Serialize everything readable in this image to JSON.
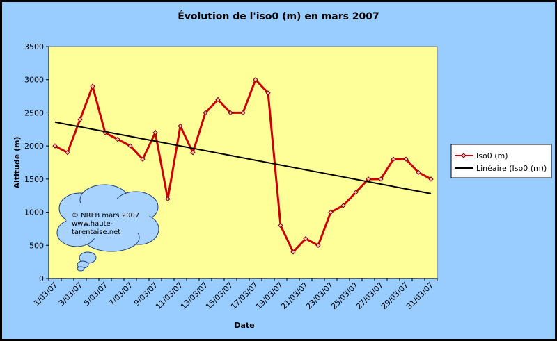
{
  "chart_data": {
    "type": "line",
    "title": "Évolution de l'iso0 (m) en mars 2007",
    "x_label": "Date",
    "y_label": "Altitude (m)",
    "categories": [
      "1/03/07",
      null,
      "3/03/07",
      null,
      "5/03/07",
      null,
      "7/03/07",
      null,
      "9/03/07",
      null,
      "11/03/07",
      null,
      "13/03/07",
      null,
      "15/03/07",
      null,
      "17/03/07",
      null,
      "19/03/07",
      null,
      "21/03/07",
      null,
      "23/03/07",
      null,
      "25/03/07",
      null,
      "27/03/07",
      null,
      "29/03/07",
      null,
      "31/03/07"
    ],
    "series": [
      {
        "name": "Iso0 (m)",
        "color": "#cc0000",
        "values": [
          2000,
          1900,
          2400,
          2900,
          2200,
          2100,
          2000,
          1800,
          2200,
          1200,
          2300,
          1900,
          2500,
          2700,
          2500,
          2500,
          3000,
          2800,
          800,
          400,
          600,
          500,
          1000,
          1100,
          1300,
          1500,
          1500,
          1800,
          1800,
          1600,
          1500
        ]
      },
      {
        "name": "Linéaire (Iso0 (m))",
        "color": "#000000",
        "values": [
          2360,
          2324,
          2288,
          2252,
          2216,
          2180,
          2144,
          2108,
          2072,
          2036,
          2000,
          1964,
          1928,
          1892,
          1856,
          1820,
          1784,
          1748,
          1712,
          1676,
          1640,
          1604,
          1568,
          1532,
          1496,
          1460,
          1424,
          1388,
          1352,
          1316,
          1280
        ]
      }
    ],
    "ylim": [
      0,
      3500
    ],
    "yticks": [
      0,
      500,
      1000,
      1500,
      2000,
      2500,
      3000,
      3500
    ],
    "grid": false,
    "legend": "right",
    "annotation": [
      "© NRFB mars 2007",
      "www.haute-",
      "tarentaise.net"
    ]
  }
}
